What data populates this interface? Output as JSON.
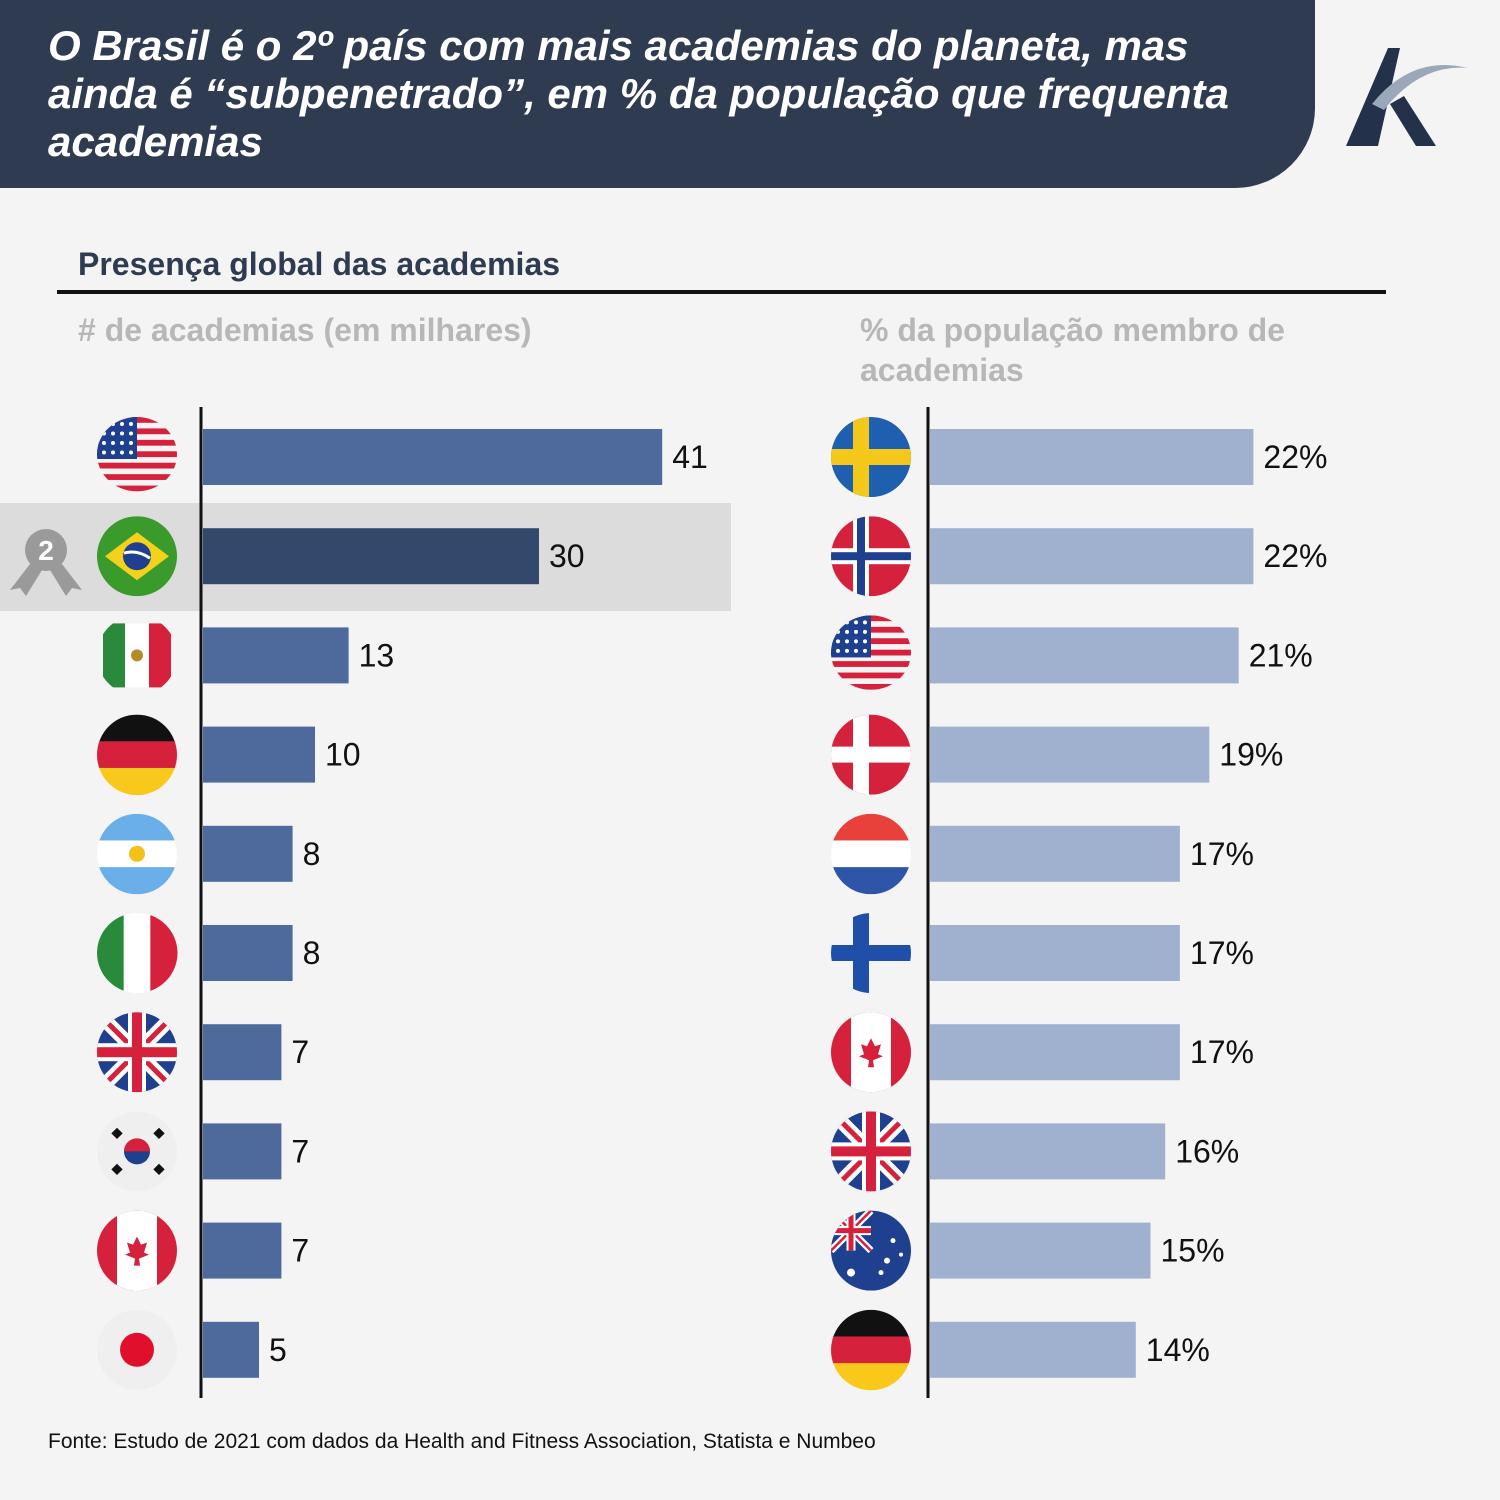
{
  "title": "O Brasil é o 2º país com mais academias do planeta, mas ainda é “subpenetrado”, em % da população que frequenta academias",
  "subtitle": "Presença global das academias",
  "logo": {
    "icon": "k-logo-icon"
  },
  "footer": "Fonte: Estudo de 2021 com dados da Health and Fitness Association, Statista e Numbeo",
  "highlight": {
    "country": "brasil",
    "rank": "2",
    "icon": "medal-icon"
  },
  "colors": {
    "header_bg": "#2e3b50",
    "left_bar": "#4e6a9c",
    "left_bar_highlight": "#32496c",
    "right_bar": "#9fb1cf",
    "highlight_bg": "#dcdcdc"
  },
  "chart_data": [
    {
      "type": "bar",
      "orientation": "horizontal",
      "title": "# de academias (em milhares)",
      "categories": [
        "eua",
        "brasil",
        "mexico",
        "alemanha",
        "argentina",
        "italia",
        "reino-unido",
        "coreia-do-sul",
        "canada",
        "japao"
      ],
      "values": [
        41,
        30,
        13,
        10,
        8,
        8,
        7,
        7,
        7,
        5
      ],
      "value_labels": [
        "41",
        "30",
        "13",
        "10",
        "8",
        "8",
        "7",
        "7",
        "7",
        "5"
      ],
      "xlim": [
        0,
        45
      ],
      "highlight_index": 1
    },
    {
      "type": "bar",
      "orientation": "horizontal",
      "title": "% da população membro de academias",
      "categories": [
        "suecia",
        "noruega",
        "eua",
        "dinamarca",
        "holanda",
        "finlandia",
        "canada",
        "reino-unido",
        "australia",
        "alemanha"
      ],
      "values": [
        22,
        22,
        21,
        19,
        17,
        17,
        17,
        16,
        15,
        14
      ],
      "value_labels": [
        "22%",
        "22%",
        "21%",
        "19%",
        "17%",
        "17%",
        "17%",
        "16%",
        "15%",
        "14%"
      ],
      "xlim": [
        0,
        25
      ]
    }
  ]
}
